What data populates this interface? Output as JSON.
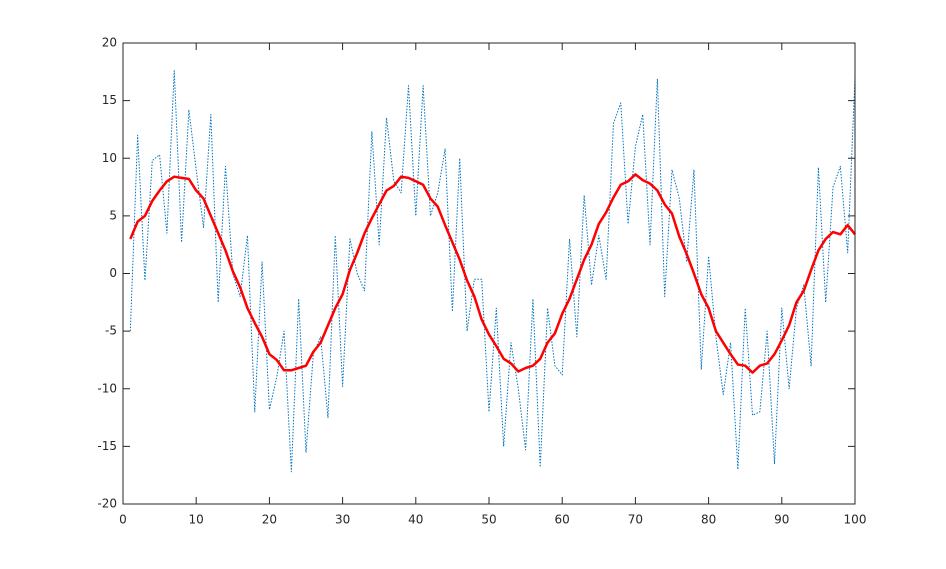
{
  "chart_data": {
    "type": "line",
    "x": [
      1,
      2,
      3,
      4,
      5,
      6,
      7,
      8,
      9,
      10,
      11,
      12,
      13,
      14,
      15,
      16,
      17,
      18,
      19,
      20,
      21,
      22,
      23,
      24,
      25,
      26,
      27,
      28,
      29,
      30,
      31,
      32,
      33,
      34,
      35,
      36,
      37,
      38,
      39,
      40,
      41,
      42,
      43,
      44,
      45,
      46,
      47,
      48,
      49,
      50,
      51,
      52,
      53,
      54,
      55,
      56,
      57,
      58,
      59,
      60,
      61,
      62,
      63,
      64,
      65,
      66,
      67,
      68,
      69,
      70,
      71,
      72,
      73,
      74,
      75,
      76,
      77,
      78,
      79,
      80,
      81,
      82,
      83,
      84,
      85,
      86,
      87,
      88,
      89,
      90,
      91,
      92,
      93,
      94,
      95,
      96,
      97,
      98,
      99,
      100
    ],
    "series": [
      {
        "color": "#0072bd",
        "style": "dotted",
        "width": 1,
        "values": [
          -5,
          12,
          -0.6,
          9.8,
          10.3,
          3.5,
          17.6,
          2.7,
          14.2,
          9,
          4,
          13.8,
          -2.5,
          9.3,
          0,
          -2,
          3.3,
          -12,
          1,
          -11.8,
          -9,
          -5,
          -17.2,
          -2.2,
          -15.5,
          -7,
          -5.5,
          -12.5,
          3.3,
          -9.8,
          3,
          0,
          -1.5,
          12.3,
          2.5,
          13.5,
          8,
          7,
          16.3,
          5,
          16.3,
          5,
          7,
          10.8,
          -3.3,
          10,
          -5,
          -0.5,
          -0.5,
          -12,
          -3,
          -15,
          -6,
          -10,
          -15.3,
          -2.2,
          -16.8,
          -3,
          -8,
          -8.8,
          3,
          -5.5,
          6.8,
          -1,
          3.3,
          -0.5,
          13,
          14.8,
          4.3,
          11,
          13.8,
          2.5,
          16.9,
          -2,
          9,
          6.5,
          1,
          9,
          -8.3,
          1.5,
          -5.5,
          -10.5,
          -6,
          -17,
          -3,
          -12.3,
          -12,
          -5,
          -16.5,
          -3,
          -10,
          -3,
          -1,
          -8,
          9.2,
          -2.5,
          7.5,
          9.3,
          1.8,
          17
        ]
      },
      {
        "color": "#ff0000",
        "style": "solid",
        "width": 2.5,
        "values": [
          3,
          4.5,
          5,
          6.3,
          7.2,
          8,
          8.4,
          8.3,
          8.2,
          7.2,
          6.5,
          5,
          3.5,
          2,
          0.2,
          -1.2,
          -3,
          -4.3,
          -5.5,
          -7,
          -7.5,
          -8.4,
          -8.4,
          -8.2,
          -8,
          -6.8,
          -6,
          -4.5,
          -3,
          -1.8,
          0.3,
          1.8,
          3.5,
          4.8,
          6,
          7.2,
          7.6,
          8.4,
          8.3,
          8,
          7.7,
          6.5,
          5.8,
          4.2,
          2.7,
          1.2,
          -0.6,
          -2,
          -4,
          -5.3,
          -6.3,
          -7.4,
          -7.8,
          -8.5,
          -8.2,
          -8,
          -7.4,
          -6,
          -5.2,
          -3.5,
          -2.2,
          -0.5,
          1.2,
          2.5,
          4.3,
          5.3,
          6.6,
          7.7,
          8,
          8.6,
          8.1,
          7.8,
          7.2,
          6,
          5.2,
          3.2,
          1.7,
          0,
          -1.8,
          -3,
          -5,
          -6,
          -7,
          -7.9,
          -8,
          -8.6,
          -8,
          -7.8,
          -7,
          -5.8,
          -4.5,
          -2.5,
          -1.5,
          0.3,
          2,
          3,
          3.6,
          3.4,
          4.2,
          3.4
        ]
      }
    ],
    "xlim": [
      0,
      100
    ],
    "xticks": [
      0,
      10,
      20,
      30,
      40,
      50,
      60,
      70,
      80,
      90,
      100
    ],
    "ylim": [
      -20,
      20
    ],
    "yticks": [
      -20,
      -15,
      -10,
      -5,
      0,
      5,
      10,
      15,
      20
    ],
    "grid": false
  }
}
